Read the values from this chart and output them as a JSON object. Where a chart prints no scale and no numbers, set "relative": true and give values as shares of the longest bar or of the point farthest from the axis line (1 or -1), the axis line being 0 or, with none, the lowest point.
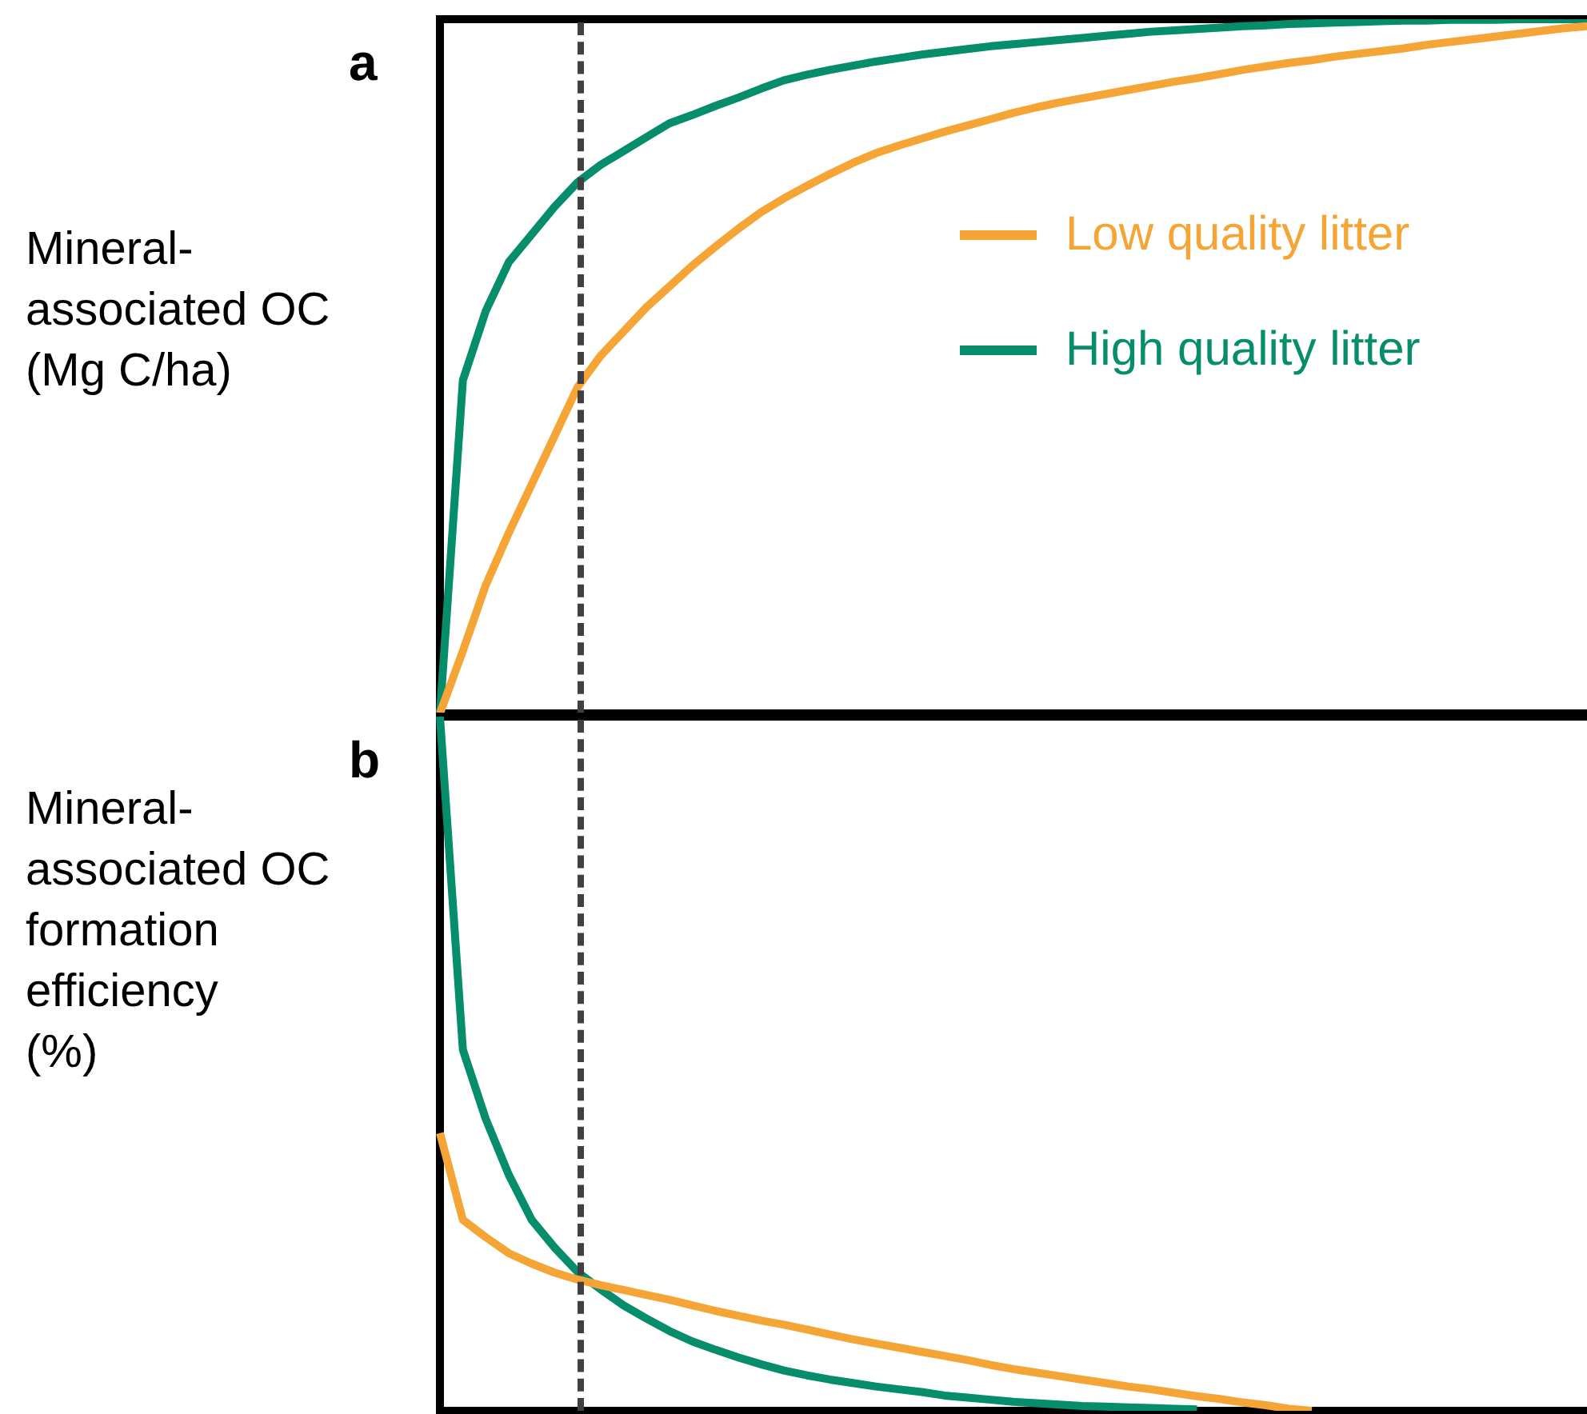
{
  "chart_data": [
    {
      "type": "line",
      "title": "a",
      "ylabel": "Mineral-\nassociated OC\n(Mg C/ha)",
      "relative": true,
      "legend": "right",
      "line_style": "solid",
      "categories": [
        null,
        null,
        null,
        null,
        null,
        null,
        null,
        null,
        null,
        null,
        null,
        null,
        null,
        null,
        null,
        null,
        null,
        null,
        null,
        null,
        null,
        null,
        null,
        null,
        null,
        null,
        null,
        null,
        null,
        null,
        null,
        null,
        null,
        null,
        null,
        null,
        null,
        null,
        null,
        null,
        null,
        null,
        null,
        null,
        null,
        null,
        null,
        null,
        null,
        null,
        null
      ],
      "series": [
        {
          "name": "Low quality litter",
          "color": "#f4a535",
          "values": [
            0,
            0.09,
            0.185,
            0.26,
            0.33,
            0.4,
            0.47,
            0.515,
            0.55,
            0.585,
            0.615,
            0.645,
            0.672,
            0.698,
            0.722,
            0.742,
            0.76,
            0.777,
            0.793,
            0.807,
            0.818,
            0.828,
            0.838,
            0.847,
            0.856,
            0.865,
            0.873,
            0.88,
            0.886,
            0.892,
            0.898,
            0.904,
            0.91,
            0.915,
            0.921,
            0.927,
            0.932,
            0.937,
            0.941,
            0.946,
            0.95,
            0.954,
            0.958,
            0.963,
            0.967,
            0.971,
            0.975,
            0.979,
            0.983,
            0.987,
            0.99
          ]
        },
        {
          "name": "High quality litter",
          "color": "#068d6b",
          "values": [
            0,
            0.48,
            0.58,
            0.65,
            0.69,
            0.73,
            0.765,
            0.79,
            0.81,
            0.83,
            0.85,
            0.862,
            0.875,
            0.887,
            0.9,
            0.912,
            0.92,
            0.927,
            0.933,
            0.939,
            0.944,
            0.949,
            0.953,
            0.957,
            0.961,
            0.964,
            0.967,
            0.97,
            0.973,
            0.976,
            0.979,
            0.982,
            0.984,
            0.986,
            0.988,
            0.99,
            0.991,
            0.993,
            0.994,
            0.995,
            0.996,
            0.997,
            0.998,
            0.998,
            0.999,
            0.999,
            0.999,
            1,
            1,
            1,
            1
          ]
        }
      ]
    },
    {
      "type": "line",
      "title": "b",
      "ylabel": "Mineral-\nassociated OC\nformation\nefficiency\n(%)",
      "relative": true,
      "line_style": "solid",
      "categories": [
        null,
        null,
        null,
        null,
        null,
        null,
        null,
        null,
        null,
        null,
        null,
        null,
        null,
        null,
        null,
        null,
        null,
        null,
        null,
        null,
        null,
        null,
        null,
        null,
        null,
        null,
        null,
        null,
        null,
        null,
        null,
        null,
        null,
        null,
        null,
        null,
        null,
        null,
        null,
        null,
        null,
        null,
        null,
        null,
        null,
        null,
        null,
        null,
        null,
        null,
        null
      ],
      "series": [
        {
          "color": "#f4a535",
          "values": [
            0.4,
            0.275,
            0.25,
            0.227,
            0.212,
            0.199,
            0.189,
            0.181,
            0.174,
            0.167,
            0.16,
            0.152,
            0.144,
            0.137,
            0.13,
            0.124,
            0.117,
            0.11,
            0.103,
            0.097,
            0.091,
            0.085,
            0.079,
            0.073,
            0.066,
            0.06,
            0.055,
            0.05,
            0.045,
            0.04,
            0.035,
            0.031,
            0.026,
            0.021,
            0.017,
            0.012,
            0.008,
            0.003,
            0,
            null,
            null,
            null,
            null,
            null,
            null,
            null,
            null,
            null,
            null,
            null,
            null
          ]
        },
        {
          "color": "#068d6b",
          "values": [
            1,
            0.52,
            0.42,
            0.34,
            0.275,
            0.235,
            0.2,
            0.175,
            0.152,
            0.133,
            0.115,
            0.1,
            0.088,
            0.077,
            0.067,
            0.058,
            0.051,
            0.045,
            0.04,
            0.035,
            0.031,
            0.027,
            0.022,
            0.019,
            0.016,
            0.013,
            0.011,
            0.009,
            0.007,
            0.006,
            0.005,
            0.004,
            0.003,
            0.002,
            null,
            null,
            null,
            null,
            null,
            null,
            null,
            null,
            null,
            null,
            null,
            null,
            null,
            null,
            null,
            null,
            null
          ]
        }
      ]
    }
  ]
}
